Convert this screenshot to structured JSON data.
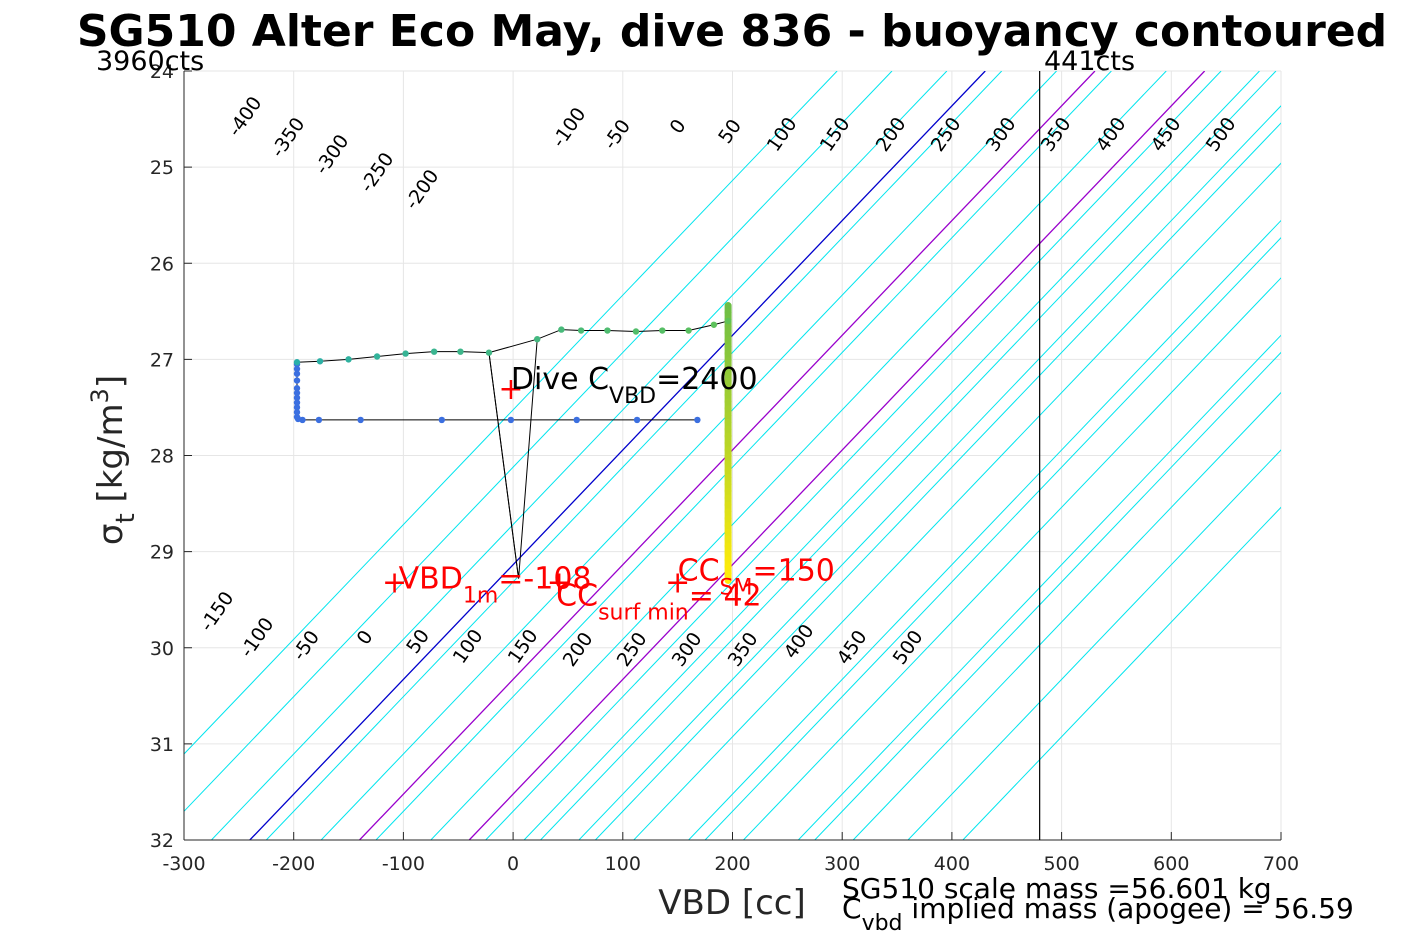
{
  "chart_data": {
    "type": "scatter",
    "title": "SG510 Alter Eco May, dive 836 - buoyancy contoured",
    "xlabel": "VBD [cc]",
    "ylabel": {
      "sym": "σ",
      "sub": "t",
      "text": " [kg/m",
      "sup": "3",
      "close": "]"
    },
    "xlim": [
      -300,
      700
    ],
    "ylim": [
      24,
      32
    ],
    "y_reversed": true,
    "grid": true,
    "x_ticks": [
      -300,
      -200,
      -100,
      0,
      100,
      200,
      300,
      400,
      500,
      600,
      700
    ],
    "y_ticks": [
      24,
      25,
      26,
      27,
      28,
      29,
      30,
      31,
      32
    ],
    "corner_left": "3960cts",
    "corner_right": "441cts",
    "limit_line_x": 480,
    "contour_slope_cc_per_sigma": 83.8,
    "contours_top": [
      -400,
      -350,
      -300,
      -250,
      -200,
      -100,
      -50,
      0,
      50,
      100,
      150,
      200,
      250,
      300,
      350,
      400,
      450,
      500
    ],
    "contours_bottom": [
      -150,
      -100,
      -50,
      0,
      50,
      100,
      150,
      200,
      250,
      300,
      350,
      400,
      450,
      500
    ],
    "contours": [
      {
        "value": -500,
        "vbd_at_32": -375
      },
      {
        "value": -450,
        "vbd_at_32": -325
      },
      {
        "value": -400,
        "vbd_at_32": -275
      },
      {
        "value": -350,
        "vbd_at_32": -225
      },
      {
        "value": -300,
        "vbd_at_32": -175
      },
      {
        "value": -250,
        "vbd_at_32": -125
      },
      {
        "value": -200,
        "vbd_at_32": -75
      },
      {
        "value": -150,
        "vbd_at_32": -25
      },
      {
        "value": -100,
        "vbd_at_32": 25
      },
      {
        "value": -50,
        "vbd_at_32": 75
      },
      {
        "value": 0,
        "vbd_at_32": -240,
        "color": "#0000cc"
      },
      {
        "value": 50,
        "vbd_at_32": 175
      },
      {
        "value": 100,
        "vbd_at_32": -140,
        "color": "#9900cc"
      },
      {
        "value": 150,
        "vbd_at_32": 275
      },
      {
        "value": 200,
        "vbd_at_32": -40,
        "color": "#9900cc"
      },
      {
        "value": 250,
        "vbd_at_32": 10
      },
      {
        "value": 300,
        "vbd_at_32": 60
      },
      {
        "value": 350,
        "vbd_at_32": 110
      },
      {
        "value": 400,
        "vbd_at_32": 160
      },
      {
        "value": 450,
        "vbd_at_32": 210
      },
      {
        "value": 500,
        "vbd_at_32": 260
      },
      {
        "value": 550,
        "vbd_at_32": 310
      },
      {
        "value": 600,
        "vbd_at_32": 360
      },
      {
        "value": 650,
        "vbd_at_32": 410
      }
    ],
    "descent_series": {
      "name": "",
      "points": [
        [
          168,
          27.63
        ],
        [
          113,
          27.63
        ],
        [
          58,
          27.63
        ],
        [
          -2,
          27.63
        ],
        [
          -65,
          27.63
        ],
        [
          -139,
          27.63
        ],
        [
          -177,
          27.63
        ],
        [
          -192,
          27.63
        ],
        [
          -196,
          27.62
        ],
        [
          -197,
          27.6
        ],
        [
          -197,
          27.55
        ],
        [
          -197,
          27.5
        ],
        [
          -197,
          27.45
        ],
        [
          -197,
          27.4
        ],
        [
          -197,
          27.35
        ],
        [
          -197,
          27.3
        ],
        [
          -197,
          27.22
        ],
        [
          -197,
          27.15
        ],
        [
          -197,
          27.1
        ],
        [
          -197,
          27.05
        ]
      ]
    },
    "ascent_series": {
      "name": "",
      "points": [
        [
          -197,
          27.03
        ],
        [
          -176,
          27.02
        ],
        [
          -150,
          27.0
        ],
        [
          -124,
          26.97
        ],
        [
          -98,
          26.94
        ],
        [
          -72,
          26.92
        ],
        [
          -48,
          26.92
        ],
        [
          -22,
          26.93
        ],
        [
          22,
          26.79
        ],
        [
          44,
          26.69
        ],
        [
          62,
          26.7
        ],
        [
          86,
          26.7
        ],
        [
          112,
          26.71
        ],
        [
          136,
          26.7
        ],
        [
          160,
          26.7
        ],
        [
          183,
          26.64
        ],
        [
          196,
          26.6
        ]
      ]
    },
    "vertical_series": {
      "vbd": 196,
      "sigma_start": 26.44,
      "sigma_end": 29.3
    },
    "v_lines": [
      [
        [
          -22,
          26.93
        ],
        [
          5,
          29.28
        ],
        [
          22,
          26.79
        ]
      ],
      [
        [
          -22,
          26.93
        ],
        [
          5,
          29.28
        ]
      ]
    ],
    "annotations": {
      "dive": {
        "x": -2,
        "y": 27.33,
        "text": "Dive C",
        "sub": "VBD",
        "rest": "=2400",
        "color": "#000000"
      },
      "vbd1m": {
        "x": -108,
        "y": 29.34,
        "text": "VBD",
        "sub": "1m",
        "rest": "=-108",
        "color": "#ff0000"
      },
      "ccsurf": {
        "x": 42,
        "y": 29.34,
        "text": "CC",
        "sub": "surf min",
        "rest": "= 42",
        "color": "#ff0000"
      },
      "ccsm": {
        "x": 150,
        "y": 29.34,
        "text": "CC",
        "sub": "SM",
        "rest": "=150",
        "color": "#ff0000"
      }
    }
  },
  "footer": {
    "line1": "SG510 scale mass =56.601 kg",
    "line2_c": "C",
    "line2_sub": "vbd",
    "line2_rest": " implied mass (apogee) = 56.59"
  },
  "colors": {
    "contour": "#00e5ee",
    "zero": "#0000cc",
    "highlight": "#9900cc",
    "annot": "#ff0000",
    "grid": "#e6e6e6"
  }
}
